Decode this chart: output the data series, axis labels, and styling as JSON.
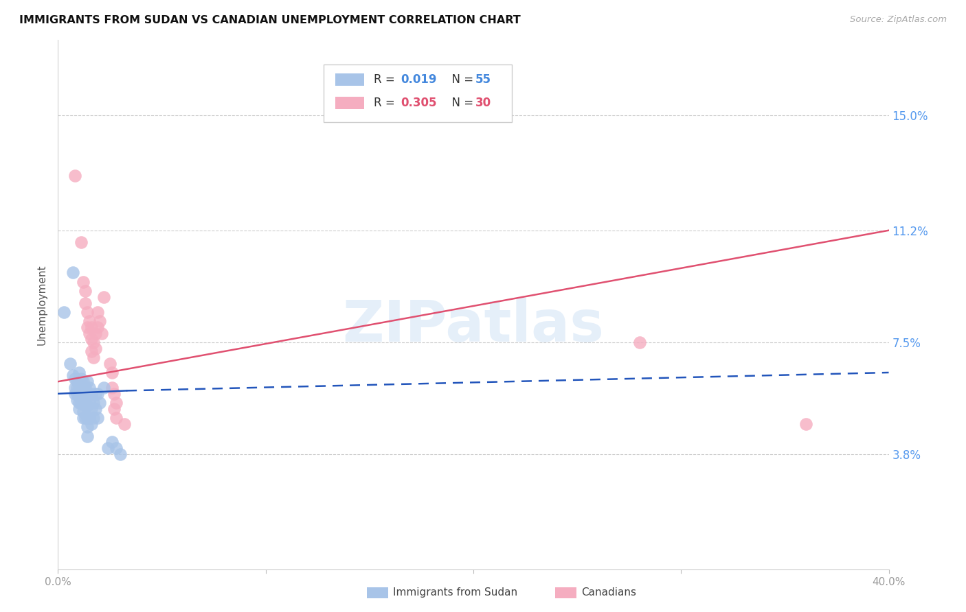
{
  "title": "IMMIGRANTS FROM SUDAN VS CANADIAN UNEMPLOYMENT CORRELATION CHART",
  "source": "Source: ZipAtlas.com",
  "ylabel": "Unemployment",
  "ytick_labels": [
    "15.0%",
    "11.2%",
    "7.5%",
    "3.8%"
  ],
  "ytick_values": [
    0.15,
    0.112,
    0.075,
    0.038
  ],
  "xlim": [
    0.0,
    0.4
  ],
  "ylim": [
    0.0,
    0.175
  ],
  "watermark": "ZIPatlas",
  "blue_color": "#a8c4e8",
  "pink_color": "#f5adc0",
  "blue_line_color": "#2255bb",
  "pink_line_color": "#e05070",
  "blue_scatter": [
    [
      0.003,
      0.085
    ],
    [
      0.006,
      0.068
    ],
    [
      0.007,
      0.064
    ],
    [
      0.008,
      0.063
    ],
    [
      0.008,
      0.06
    ],
    [
      0.008,
      0.058
    ],
    [
      0.009,
      0.062
    ],
    [
      0.009,
      0.06
    ],
    [
      0.009,
      0.058
    ],
    [
      0.009,
      0.056
    ],
    [
      0.01,
      0.065
    ],
    [
      0.01,
      0.062
    ],
    [
      0.01,
      0.06
    ],
    [
      0.01,
      0.057
    ],
    [
      0.01,
      0.055
    ],
    [
      0.01,
      0.053
    ],
    [
      0.011,
      0.063
    ],
    [
      0.011,
      0.06
    ],
    [
      0.011,
      0.058
    ],
    [
      0.011,
      0.055
    ],
    [
      0.012,
      0.062
    ],
    [
      0.012,
      0.06
    ],
    [
      0.012,
      0.057
    ],
    [
      0.012,
      0.055
    ],
    [
      0.012,
      0.052
    ],
    [
      0.012,
      0.05
    ],
    [
      0.013,
      0.06
    ],
    [
      0.013,
      0.057
    ],
    [
      0.013,
      0.054
    ],
    [
      0.013,
      0.05
    ],
    [
      0.014,
      0.062
    ],
    [
      0.014,
      0.058
    ],
    [
      0.014,
      0.054
    ],
    [
      0.014,
      0.05
    ],
    [
      0.014,
      0.047
    ],
    [
      0.014,
      0.044
    ],
    [
      0.015,
      0.06
    ],
    [
      0.015,
      0.055
    ],
    [
      0.015,
      0.05
    ],
    [
      0.016,
      0.058
    ],
    [
      0.016,
      0.053
    ],
    [
      0.016,
      0.048
    ],
    [
      0.017,
      0.055
    ],
    [
      0.017,
      0.05
    ],
    [
      0.018,
      0.058
    ],
    [
      0.018,
      0.053
    ],
    [
      0.019,
      0.058
    ],
    [
      0.019,
      0.05
    ],
    [
      0.02,
      0.055
    ],
    [
      0.022,
      0.06
    ],
    [
      0.024,
      0.04
    ],
    [
      0.026,
      0.042
    ],
    [
      0.028,
      0.04
    ],
    [
      0.03,
      0.038
    ],
    [
      0.007,
      0.098
    ]
  ],
  "pink_scatter": [
    [
      0.008,
      0.13
    ],
    [
      0.011,
      0.108
    ],
    [
      0.012,
      0.095
    ],
    [
      0.013,
      0.092
    ],
    [
      0.013,
      0.088
    ],
    [
      0.014,
      0.085
    ],
    [
      0.014,
      0.08
    ],
    [
      0.015,
      0.082
    ],
    [
      0.015,
      0.078
    ],
    [
      0.016,
      0.08
    ],
    [
      0.016,
      0.076
    ],
    [
      0.016,
      0.072
    ],
    [
      0.017,
      0.075
    ],
    [
      0.017,
      0.07
    ],
    [
      0.018,
      0.078
    ],
    [
      0.018,
      0.073
    ],
    [
      0.019,
      0.085
    ],
    [
      0.019,
      0.08
    ],
    [
      0.02,
      0.082
    ],
    [
      0.021,
      0.078
    ],
    [
      0.022,
      0.09
    ],
    [
      0.025,
      0.068
    ],
    [
      0.026,
      0.065
    ],
    [
      0.026,
      0.06
    ],
    [
      0.027,
      0.058
    ],
    [
      0.027,
      0.053
    ],
    [
      0.028,
      0.055
    ],
    [
      0.028,
      0.05
    ],
    [
      0.032,
      0.048
    ],
    [
      0.28,
      0.075
    ],
    [
      0.36,
      0.048
    ]
  ],
  "blue_solid_trend": {
    "x_start": 0.0,
    "x_end": 0.033,
    "y_start": 0.058,
    "y_end": 0.059
  },
  "blue_dashed_trend": {
    "x_start": 0.033,
    "x_end": 0.4,
    "y_start": 0.059,
    "y_end": 0.065
  },
  "pink_trend": {
    "x_start": 0.0,
    "x_end": 0.4,
    "y_start": 0.062,
    "y_end": 0.112
  }
}
